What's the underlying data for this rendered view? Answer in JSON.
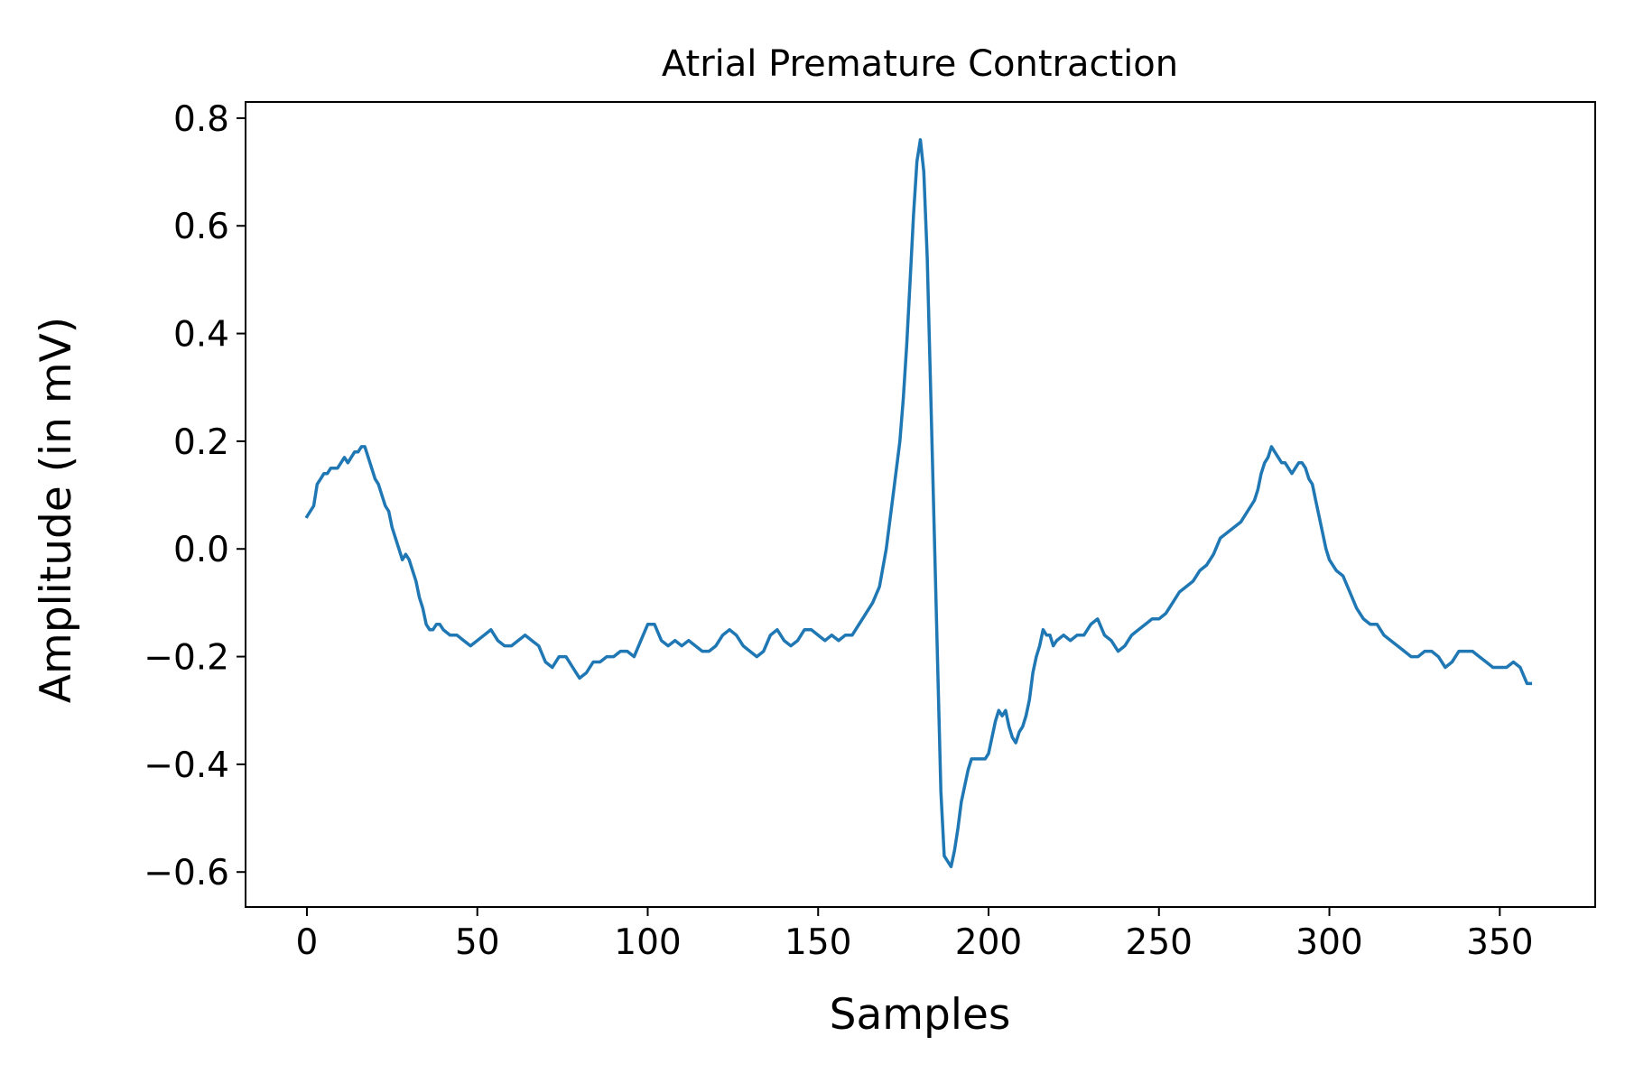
{
  "chart_data": {
    "type": "line",
    "title": "Atrial Premature Contraction",
    "xlabel": "Samples",
    "ylabel": "Amplitude (in mV)",
    "xlim": [
      -18,
      378
    ],
    "ylim": [
      -0.665,
      0.83
    ],
    "xticks": [
      0,
      50,
      100,
      150,
      200,
      250,
      300,
      350
    ],
    "xtick_labels": [
      "0",
      "50",
      "100",
      "150",
      "200",
      "250",
      "300",
      "350"
    ],
    "yticks": [
      -0.6,
      -0.4,
      -0.2,
      0.0,
      0.2,
      0.4,
      0.6,
      0.8
    ],
    "ytick_labels": [
      "−0.6",
      "−0.4",
      "−0.2",
      "0.0",
      "0.2",
      "0.4",
      "0.6",
      "0.8"
    ],
    "grid": false,
    "legend": "none",
    "series": [
      {
        "color": "#1f77b4",
        "x": [
          0,
          1,
          2,
          3,
          4,
          5,
          6,
          7,
          8,
          9,
          10,
          11,
          12,
          13,
          14,
          15,
          16,
          17,
          18,
          19,
          20,
          21,
          22,
          23,
          24,
          25,
          26,
          27,
          28,
          29,
          30,
          31,
          32,
          33,
          34,
          35,
          36,
          37,
          38,
          39,
          40,
          42,
          44,
          46,
          48,
          50,
          52,
          54,
          56,
          58,
          60,
          62,
          64,
          66,
          68,
          70,
          72,
          74,
          76,
          78,
          80,
          82,
          84,
          86,
          88,
          90,
          92,
          94,
          96,
          98,
          100,
          102,
          104,
          106,
          108,
          110,
          112,
          114,
          116,
          118,
          120,
          122,
          124,
          126,
          128,
          130,
          132,
          134,
          136,
          138,
          140,
          142,
          144,
          146,
          148,
          150,
          152,
          154,
          156,
          158,
          160,
          162,
          164,
          166,
          168,
          170,
          172,
          174,
          175,
          176,
          177,
          178,
          179,
          180,
          181,
          182,
          183,
          184,
          185,
          186,
          187,
          188,
          189,
          190,
          191,
          192,
          193,
          194,
          195,
          196,
          197,
          198,
          199,
          200,
          201,
          202,
          203,
          204,
          205,
          206,
          207,
          208,
          209,
          210,
          211,
          212,
          213,
          214,
          215,
          216,
          217,
          218,
          219,
          220,
          222,
          224,
          226,
          228,
          230,
          232,
          234,
          236,
          238,
          240,
          242,
          244,
          246,
          248,
          250,
          252,
          254,
          256,
          258,
          260,
          262,
          264,
          266,
          268,
          270,
          272,
          274,
          276,
          278,
          279,
          280,
          281,
          282,
          283,
          284,
          285,
          286,
          287,
          288,
          289,
          290,
          291,
          292,
          293,
          294,
          295,
          296,
          297,
          298,
          299,
          300,
          302,
          304,
          306,
          308,
          310,
          312,
          314,
          316,
          318,
          320,
          322,
          324,
          326,
          328,
          330,
          332,
          334,
          336,
          338,
          340,
          342,
          344,
          346,
          348,
          350,
          352,
          354,
          356,
          358,
          359
        ],
        "y": [
          0.06,
          0.07,
          0.08,
          0.12,
          0.13,
          0.14,
          0.14,
          0.15,
          0.15,
          0.15,
          0.16,
          0.17,
          0.16,
          0.17,
          0.18,
          0.18,
          0.19,
          0.19,
          0.17,
          0.15,
          0.13,
          0.12,
          0.1,
          0.08,
          0.07,
          0.04,
          0.02,
          0.0,
          -0.02,
          -0.01,
          -0.02,
          -0.04,
          -0.06,
          -0.09,
          -0.11,
          -0.14,
          -0.15,
          -0.15,
          -0.14,
          -0.14,
          -0.15,
          -0.16,
          -0.16,
          -0.17,
          -0.18,
          -0.17,
          -0.16,
          -0.15,
          -0.17,
          -0.18,
          -0.18,
          -0.17,
          -0.16,
          -0.17,
          -0.18,
          -0.21,
          -0.22,
          -0.2,
          -0.2,
          -0.22,
          -0.24,
          -0.23,
          -0.21,
          -0.21,
          -0.2,
          -0.2,
          -0.19,
          -0.19,
          -0.2,
          -0.17,
          -0.14,
          -0.14,
          -0.17,
          -0.18,
          -0.17,
          -0.18,
          -0.17,
          -0.18,
          -0.19,
          -0.19,
          -0.18,
          -0.16,
          -0.15,
          -0.16,
          -0.18,
          -0.19,
          -0.2,
          -0.19,
          -0.16,
          -0.15,
          -0.17,
          -0.18,
          -0.17,
          -0.15,
          -0.15,
          -0.16,
          -0.17,
          -0.16,
          -0.17,
          -0.16,
          -0.16,
          -0.14,
          -0.12,
          -0.1,
          -0.07,
          0.0,
          0.1,
          0.2,
          0.28,
          0.38,
          0.5,
          0.62,
          0.72,
          0.76,
          0.7,
          0.54,
          0.3,
          0.05,
          -0.2,
          -0.45,
          -0.57,
          -0.58,
          -0.59,
          -0.56,
          -0.52,
          -0.47,
          -0.44,
          -0.41,
          -0.39,
          -0.39,
          -0.39,
          -0.39,
          -0.39,
          -0.38,
          -0.35,
          -0.32,
          -0.3,
          -0.31,
          -0.3,
          -0.33,
          -0.35,
          -0.36,
          -0.34,
          -0.33,
          -0.31,
          -0.28,
          -0.23,
          -0.2,
          -0.18,
          -0.15,
          -0.16,
          -0.16,
          -0.18,
          -0.17,
          -0.16,
          -0.17,
          -0.16,
          -0.16,
          -0.14,
          -0.13,
          -0.16,
          -0.17,
          -0.19,
          -0.18,
          -0.16,
          -0.15,
          -0.14,
          -0.13,
          -0.13,
          -0.12,
          -0.1,
          -0.08,
          -0.07,
          -0.06,
          -0.04,
          -0.03,
          -0.01,
          0.02,
          0.03,
          0.04,
          0.05,
          0.07,
          0.09,
          0.11,
          0.14,
          0.16,
          0.17,
          0.19,
          0.18,
          0.17,
          0.16,
          0.16,
          0.15,
          0.14,
          0.15,
          0.16,
          0.16,
          0.15,
          0.13,
          0.12,
          0.09,
          0.06,
          0.03,
          0.0,
          -0.02,
          -0.04,
          -0.05,
          -0.08,
          -0.11,
          -0.13,
          -0.14,
          -0.14,
          -0.16,
          -0.17,
          -0.18,
          -0.19,
          -0.2,
          -0.2,
          -0.19,
          -0.19,
          -0.2,
          -0.22,
          -0.21,
          -0.19,
          -0.19,
          -0.19,
          -0.2,
          -0.21,
          -0.22,
          -0.22,
          -0.22,
          -0.21,
          -0.22,
          -0.25,
          -0.25
        ]
      }
    ]
  }
}
